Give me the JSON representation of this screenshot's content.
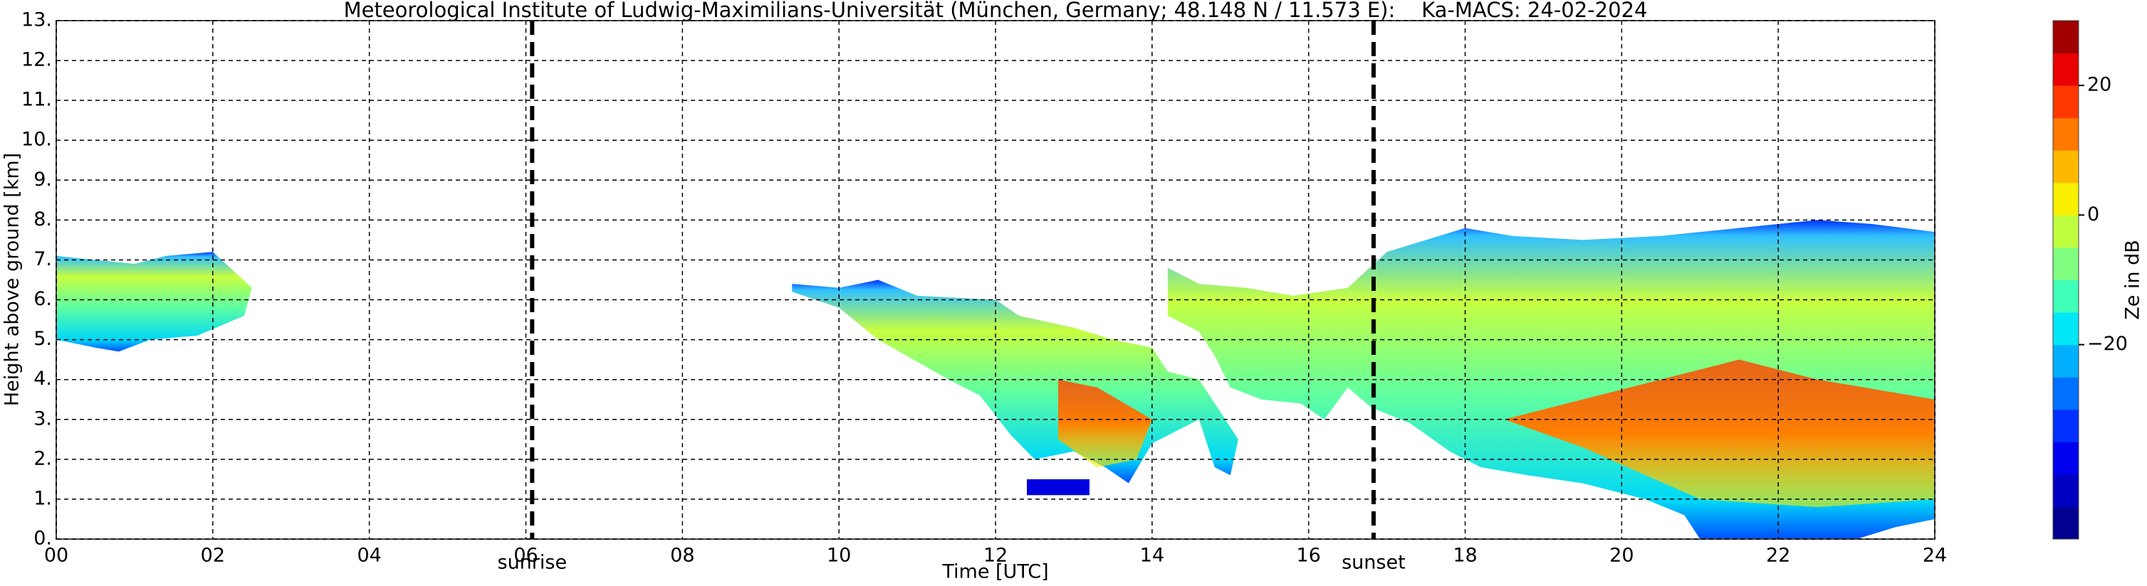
{
  "chart_data": {
    "type": "time-height",
    "title": "Meteorological Institute of Ludwig-Maximilians-Universität (München, Germany; 48.148 N / 11.573 E):    Ka-MACS: 24-02-2024",
    "x_label": "Time [UTC]",
    "y_label": "Height above ground [km]",
    "xlim": [
      0,
      24
    ],
    "xticks": [
      {
        "value": 0,
        "label": "00"
      },
      {
        "value": 2,
        "label": "02"
      },
      {
        "value": 4,
        "label": "04"
      },
      {
        "value": 6,
        "label": "06"
      },
      {
        "value": 8,
        "label": "08"
      },
      {
        "value": 10,
        "label": "10"
      },
      {
        "value": 12,
        "label": "12"
      },
      {
        "value": 14,
        "label": "14"
      },
      {
        "value": 16,
        "label": "16"
      },
      {
        "value": 18,
        "label": "18"
      },
      {
        "value": 20,
        "label": "20"
      },
      {
        "value": 22,
        "label": "22"
      },
      {
        "value": 24,
        "label": "24"
      }
    ],
    "ylim": [
      0,
      13
    ],
    "yticks": [
      {
        "value": 0,
        "label": "0."
      },
      {
        "value": 1,
        "label": "1."
      },
      {
        "value": 2,
        "label": "2."
      },
      {
        "value": 3,
        "label": "3."
      },
      {
        "value": 4,
        "label": "4."
      },
      {
        "value": 5,
        "label": "5."
      },
      {
        "value": 6,
        "label": "6."
      },
      {
        "value": 7,
        "label": "7."
      },
      {
        "value": 8,
        "label": "8."
      },
      {
        "value": 9,
        "label": "9."
      },
      {
        "value": 10,
        "label": "10."
      },
      {
        "value": 11,
        "label": "11."
      },
      {
        "value": 12,
        "label": "12."
      },
      {
        "value": 13,
        "label": "13."
      }
    ],
    "grid": true,
    "vlines": [
      {
        "label": "sunrise",
        "x": 6.08
      },
      {
        "label": "sunset",
        "x": 16.83
      }
    ],
    "colorbar": {
      "label": "Ze in dB",
      "lim": [
        -50,
        30
      ],
      "ticks": [
        {
          "value": -20,
          "label": "−20"
        },
        0,
        20
      ],
      "colors": [
        "#000090",
        "#0000c0",
        "#0000f0",
        "#0030ff",
        "#0070ff",
        "#00b0ff",
        "#00e8f8",
        "#40ffb8",
        "#80ff80",
        "#c0ff40",
        "#f8f000",
        "#ffb800",
        "#ff7800",
        "#ff3800",
        "#e80000",
        "#a00000"
      ]
    }
  }
}
